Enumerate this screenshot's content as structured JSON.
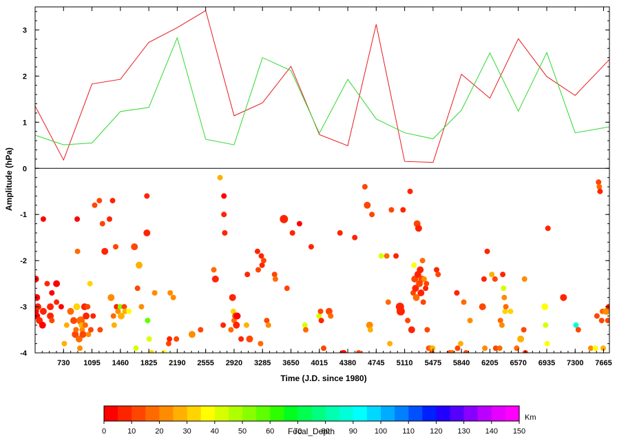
{
  "chart_data": {
    "type": "line+scatter",
    "xlabel": "Time (J.D. since 1980)",
    "ylabel": "Amplitude (hPa)",
    "xlim": [
      365,
      7740
    ],
    "ylim": [
      -4,
      3.5
    ],
    "x_ticks": [
      730,
      1095,
      1460,
      1825,
      2190,
      2555,
      2920,
      3285,
      3650,
      4015,
      4380,
      4745,
      5110,
      5475,
      5840,
      6205,
      6570,
      6935,
      7300,
      7665
    ],
    "y_ticks": [
      -4,
      -3,
      -2,
      -1,
      0,
      1,
      2,
      3
    ],
    "zero_line": 0,
    "series": [
      {
        "color": "#e8171a",
        "x": [
          365,
          730,
          1095,
          1460,
          1825,
          2190,
          2555,
          2920,
          3285,
          3650,
          4015,
          4380,
          4745,
          5110,
          5475,
          5840,
          6205,
          6570,
          6935,
          7300,
          7740
        ],
        "y": [
          1.35,
          0.18,
          1.83,
          1.93,
          2.73,
          3.05,
          3.42,
          1.14,
          1.42,
          2.21,
          0.73,
          0.49,
          3.12,
          0.15,
          0.13,
          2.04,
          1.52,
          2.81,
          1.99,
          1.58,
          2.36
        ]
      },
      {
        "color": "#2ed82e",
        "x": [
          365,
          730,
          1095,
          1460,
          1825,
          2190,
          2555,
          2920,
          3285,
          3650,
          4015,
          4380,
          4745,
          5110,
          5475,
          5840,
          6205,
          6570,
          6935,
          7300,
          7740
        ],
        "y": [
          0.72,
          0.51,
          0.55,
          1.23,
          1.32,
          2.83,
          0.63,
          0.51,
          2.4,
          2.12,
          0.76,
          1.93,
          1.07,
          0.77,
          0.64,
          1.26,
          2.5,
          1.24,
          2.51,
          0.77,
          0.9
        ]
      }
    ],
    "scatter": {
      "note_color": "Focal_Depth in Km",
      "points": [
        [
          370,
          -2.4,
          0,
          5
        ],
        [
          370,
          -3.1,
          0,
          5
        ],
        [
          385,
          -2.8,
          0,
          5
        ],
        [
          385,
          -3.2,
          0,
          5
        ],
        [
          400,
          -3.0,
          5,
          5
        ],
        [
          420,
          -3.3,
          5,
          5
        ],
        [
          460,
          -3.4,
          0,
          5
        ],
        [
          470,
          -3.1,
          5,
          5
        ],
        [
          470,
          -1.1,
          0,
          4
        ],
        [
          520,
          -2.5,
          5,
          4
        ],
        [
          560,
          -3.0,
          5,
          5
        ],
        [
          560,
          -3.2,
          5,
          5
        ],
        [
          580,
          -2.7,
          0,
          4
        ],
        [
          580,
          -3.3,
          10,
          4
        ],
        [
          640,
          -2.5,
          0,
          5
        ],
        [
          640,
          -2.9,
          5,
          4
        ],
        [
          700,
          -3.0,
          0,
          4
        ],
        [
          740,
          -3.8,
          25,
          4
        ],
        [
          770,
          -3.4,
          25,
          4
        ],
        [
          820,
          -3.1,
          15,
          5
        ],
        [
          860,
          -3.3,
          10,
          5
        ],
        [
          880,
          -3.6,
          10,
          5
        ],
        [
          890,
          -3.5,
          15,
          4
        ],
        [
          900,
          -3.0,
          30,
          5
        ],
        [
          905,
          -1.1,
          0,
          4
        ],
        [
          910,
          -1.8,
          15,
          4
        ],
        [
          930,
          -3.7,
          15,
          5
        ],
        [
          940,
          -3.9,
          20,
          4
        ],
        [
          950,
          -3.3,
          15,
          6
        ],
        [
          960,
          -3.4,
          25,
          4
        ],
        [
          970,
          -3.5,
          20,
          4
        ],
        [
          980,
          -3.6,
          10,
          5
        ],
        [
          1000,
          -3.0,
          5,
          5
        ],
        [
          1010,
          -3.4,
          15,
          4
        ],
        [
          1020,
          -3.2,
          5,
          5
        ],
        [
          1040,
          -3.0,
          10,
          4
        ],
        [
          1050,
          -3.6,
          20,
          4
        ],
        [
          1070,
          -2.5,
          30,
          4
        ],
        [
          1080,
          -3.5,
          10,
          4
        ],
        [
          1110,
          -3.2,
          5,
          4
        ],
        [
          1130,
          -0.8,
          10,
          4
        ],
        [
          1190,
          -0.7,
          10,
          4
        ],
        [
          1200,
          -3.5,
          10,
          4
        ],
        [
          1230,
          -1.2,
          10,
          4
        ],
        [
          1260,
          -1.8,
          5,
          5
        ],
        [
          1320,
          -1.1,
          5,
          4
        ],
        [
          1340,
          -2.8,
          20,
          5
        ],
        [
          1360,
          -0.7,
          5,
          4
        ],
        [
          1370,
          -3.2,
          15,
          4
        ],
        [
          1380,
          -3.4,
          25,
          4
        ],
        [
          1400,
          -1.7,
          10,
          4
        ],
        [
          1410,
          -3.0,
          5,
          4
        ],
        [
          1430,
          -3.1,
          20,
          4
        ],
        [
          1460,
          -3.0,
          50,
          4
        ],
        [
          1470,
          -3.2,
          25,
          5
        ],
        [
          1510,
          -3.0,
          10,
          4
        ],
        [
          1520,
          -3.1,
          25,
          4
        ],
        [
          1570,
          -3.1,
          35,
          4
        ],
        [
          1640,
          -1.7,
          10,
          5
        ],
        [
          1660,
          -3.9,
          40,
          4
        ],
        [
          1680,
          -2.6,
          10,
          4
        ],
        [
          1700,
          -2.1,
          25,
          5
        ],
        [
          1730,
          -3.0,
          20,
          4
        ],
        [
          1800,
          -1.4,
          5,
          5
        ],
        [
          1800,
          -0.6,
          5,
          4
        ],
        [
          1810,
          -3.3,
          55,
          4
        ],
        [
          1830,
          -3.7,
          40,
          4
        ],
        [
          1860,
          -4.0,
          30,
          4
        ],
        [
          1900,
          -2.7,
          20,
          4
        ],
        [
          2020,
          -4.0,
          35,
          4
        ],
        [
          2080,
          -3.8,
          10,
          4
        ],
        [
          2090,
          -3.7,
          5,
          4
        ],
        [
          2100,
          -2.7,
          20,
          4
        ],
        [
          2140,
          -2.8,
          20,
          4
        ],
        [
          2180,
          -3.7,
          10,
          4
        ],
        [
          2380,
          -3.6,
          20,
          5
        ],
        [
          2490,
          -3.5,
          10,
          4
        ],
        [
          2660,
          -2.2,
          15,
          4
        ],
        [
          2680,
          -2.4,
          5,
          5
        ],
        [
          2740,
          -0.2,
          25,
          4
        ],
        [
          2780,
          -3.4,
          5,
          4
        ],
        [
          2790,
          -1.0,
          5,
          4
        ],
        [
          2790,
          -0.6,
          0,
          4
        ],
        [
          2800,
          -1.4,
          5,
          4
        ],
        [
          2880,
          -3.5,
          15,
          4
        ],
        [
          2900,
          -2.8,
          5,
          5
        ],
        [
          2910,
          -3.1,
          30,
          4
        ],
        [
          2920,
          -3.3,
          15,
          4
        ],
        [
          2940,
          -3.2,
          10,
          5
        ],
        [
          2950,
          -3.4,
          5,
          5
        ],
        [
          2960,
          -3.2,
          0,
          5
        ],
        [
          3010,
          -3.7,
          5,
          4
        ],
        [
          3080,
          -3.4,
          25,
          4
        ],
        [
          3090,
          -2.3,
          5,
          4
        ],
        [
          3120,
          -3.7,
          10,
          5
        ],
        [
          3220,
          -1.8,
          5,
          4
        ],
        [
          3230,
          -2.2,
          10,
          4
        ],
        [
          3260,
          -3.8,
          15,
          4
        ],
        [
          3270,
          -1.9,
          5,
          4
        ],
        [
          3280,
          -2.1,
          5,
          4
        ],
        [
          3300,
          -2.0,
          10,
          4
        ],
        [
          3340,
          -3.3,
          10,
          4
        ],
        [
          3360,
          -3.4,
          20,
          4
        ],
        [
          3440,
          -2.3,
          10,
          4
        ],
        [
          3450,
          -2.4,
          15,
          4
        ],
        [
          3560,
          -1.1,
          5,
          6
        ],
        [
          3600,
          -2.6,
          10,
          4
        ],
        [
          3670,
          -1.4,
          5,
          4
        ],
        [
          3760,
          -1.2,
          0,
          4
        ],
        [
          3830,
          -3.4,
          40,
          4
        ],
        [
          3840,
          -3.5,
          15,
          4
        ],
        [
          3910,
          -1.7,
          5,
          4
        ],
        [
          4010,
          -3.2,
          40,
          4
        ],
        [
          4030,
          -3.1,
          10,
          4
        ],
        [
          4040,
          -3.3,
          5,
          4
        ],
        [
          4070,
          -3.9,
          10,
          4
        ],
        [
          4140,
          -3.1,
          10,
          5
        ],
        [
          4160,
          -3.2,
          15,
          4
        ],
        [
          4280,
          -1.4,
          5,
          4
        ],
        [
          4310,
          -4.0,
          10,
          4
        ],
        [
          4330,
          -4.0,
          0,
          4
        ],
        [
          4470,
          -1.5,
          5,
          4
        ],
        [
          4520,
          -4.0,
          10,
          4
        ],
        [
          4600,
          -0.4,
          10,
          4
        ],
        [
          4630,
          -0.8,
          10,
          5
        ],
        [
          4660,
          -3.4,
          20,
          5
        ],
        [
          4670,
          -3.5,
          25,
          4
        ],
        [
          4690,
          -1.0,
          10,
          4
        ],
        [
          4810,
          -1.9,
          40,
          4
        ],
        [
          4880,
          -1.9,
          15,
          4
        ],
        [
          4900,
          -2.9,
          15,
          4
        ],
        [
          4920,
          -3.8,
          25,
          4
        ],
        [
          4940,
          -0.9,
          10,
          4
        ],
        [
          5000,
          -1.9,
          5,
          4
        ],
        [
          5050,
          -3.0,
          5,
          6
        ],
        [
          5060,
          -3.1,
          5,
          6
        ],
        [
          5090,
          -0.9,
          5,
          4
        ],
        [
          5150,
          -3.3,
          10,
          4
        ],
        [
          5180,
          -0.5,
          5,
          4
        ],
        [
          5200,
          -3.5,
          5,
          5
        ],
        [
          5220,
          -2.7,
          10,
          4
        ],
        [
          5230,
          -2.1,
          35,
          4
        ],
        [
          5240,
          -2.4,
          10,
          5
        ],
        [
          5250,
          -2.6,
          5,
          5
        ],
        [
          5260,
          -2.8,
          15,
          5
        ],
        [
          5270,
          -1.2,
          10,
          5
        ],
        [
          5280,
          -2.3,
          5,
          5
        ],
        [
          5290,
          -1.3,
          5,
          5
        ],
        [
          5300,
          -2.5,
          10,
          5
        ],
        [
          5310,
          -2.2,
          5,
          5
        ],
        [
          5320,
          -2.7,
          5,
          5
        ],
        [
          5330,
          -2.4,
          10,
          5
        ],
        [
          5340,
          -2.0,
          15,
          4
        ],
        [
          5350,
          -2.9,
          10,
          4
        ],
        [
          5360,
          -2.4,
          20,
          4
        ],
        [
          5380,
          -2.6,
          5,
          4
        ],
        [
          5390,
          -2.5,
          10,
          4
        ],
        [
          5400,
          -3.5,
          10,
          4
        ],
        [
          5420,
          -3.9,
          10,
          4
        ],
        [
          5440,
          -3.9,
          15,
          4
        ],
        [
          5460,
          -4.0,
          10,
          4
        ],
        [
          5470,
          -3.9,
          25,
          4
        ],
        [
          5520,
          -2.2,
          5,
          4
        ],
        [
          5540,
          -2.3,
          10,
          4
        ],
        [
          5690,
          -4.0,
          10,
          4
        ],
        [
          5720,
          -4.0,
          15,
          4
        ],
        [
          5780,
          -2.7,
          5,
          4
        ],
        [
          5790,
          -3.9,
          10,
          4
        ],
        [
          5830,
          -3.8,
          25,
          4
        ],
        [
          5870,
          -2.9,
          15,
          4
        ],
        [
          5900,
          -4.0,
          10,
          4
        ],
        [
          5950,
          -3.3,
          20,
          4
        ],
        [
          6110,
          -3.0,
          10,
          5
        ],
        [
          6130,
          -2.4,
          5,
          4
        ],
        [
          6140,
          -3.9,
          20,
          4
        ],
        [
          6170,
          -1.8,
          5,
          4
        ],
        [
          6230,
          -2.3,
          25,
          4
        ],
        [
          6270,
          -2.4,
          10,
          4
        ],
        [
          6280,
          -3.9,
          10,
          4
        ],
        [
          6330,
          -3.9,
          15,
          4
        ],
        [
          6340,
          -3.3,
          15,
          4
        ],
        [
          6360,
          -3.4,
          20,
          4
        ],
        [
          6370,
          -2.3,
          5,
          4
        ],
        [
          6380,
          -2.6,
          40,
          4
        ],
        [
          6390,
          -2.8,
          20,
          4
        ],
        [
          6400,
          -3.1,
          30,
          4
        ],
        [
          6410,
          -3.0,
          15,
          4
        ],
        [
          6470,
          -3.1,
          30,
          4
        ],
        [
          6550,
          -3.9,
          15,
          4
        ],
        [
          6600,
          -3.7,
          25,
          5
        ],
        [
          6640,
          -3.5,
          10,
          4
        ],
        [
          6650,
          -2.4,
          20,
          4
        ],
        [
          6660,
          -4.0,
          5,
          4
        ],
        [
          6910,
          -3.0,
          35,
          5
        ],
        [
          6920,
          -3.4,
          40,
          4
        ],
        [
          6940,
          -3.8,
          35,
          4
        ],
        [
          6950,
          -1.3,
          5,
          4
        ],
        [
          7150,
          -2.8,
          5,
          5
        ],
        [
          7310,
          -3.4,
          85,
          4
        ],
        [
          7340,
          -3.5,
          10,
          4
        ],
        [
          7500,
          -3.9,
          20,
          4
        ],
        [
          7560,
          -3.9,
          35,
          4
        ],
        [
          7580,
          -3.2,
          10,
          4
        ],
        [
          7600,
          -0.3,
          10,
          4
        ],
        [
          7610,
          -0.4,
          15,
          4
        ],
        [
          7620,
          -0.5,
          5,
          4
        ],
        [
          7640,
          -3.3,
          10,
          4
        ],
        [
          7650,
          -3.1,
          15,
          4
        ],
        [
          7660,
          -3.9,
          25,
          4
        ],
        [
          7700,
          -3.1,
          20,
          5
        ],
        [
          7720,
          -3.3,
          10,
          4
        ],
        [
          7730,
          -3.0,
          5,
          4
        ]
      ]
    },
    "colorbar": {
      "title": "Focal_Depth",
      "unit": "Km",
      "min": 0,
      "max": 150,
      "ticks": [
        0,
        10,
        20,
        30,
        40,
        50,
        60,
        70,
        80,
        90,
        100,
        110,
        120,
        130,
        140,
        150
      ],
      "colors": [
        "#ff0000",
        "#ff2400",
        "#ff4600",
        "#ff6a00",
        "#ff8c00",
        "#ffb000",
        "#ffd400",
        "#ffff00",
        "#d8ff00",
        "#b0ff00",
        "#88ff00",
        "#5eff00",
        "#2eff00",
        "#00ff1e",
        "#00ff4e",
        "#00ff7e",
        "#00ffae",
        "#00ffd8",
        "#00ffff",
        "#00d8ff",
        "#00acff",
        "#0080ff",
        "#0050ff",
        "#0020ff",
        "#2200ff",
        "#5500ff",
        "#8800ff",
        "#bb00ff",
        "#e500ff",
        "#ff00ff"
      ]
    }
  }
}
